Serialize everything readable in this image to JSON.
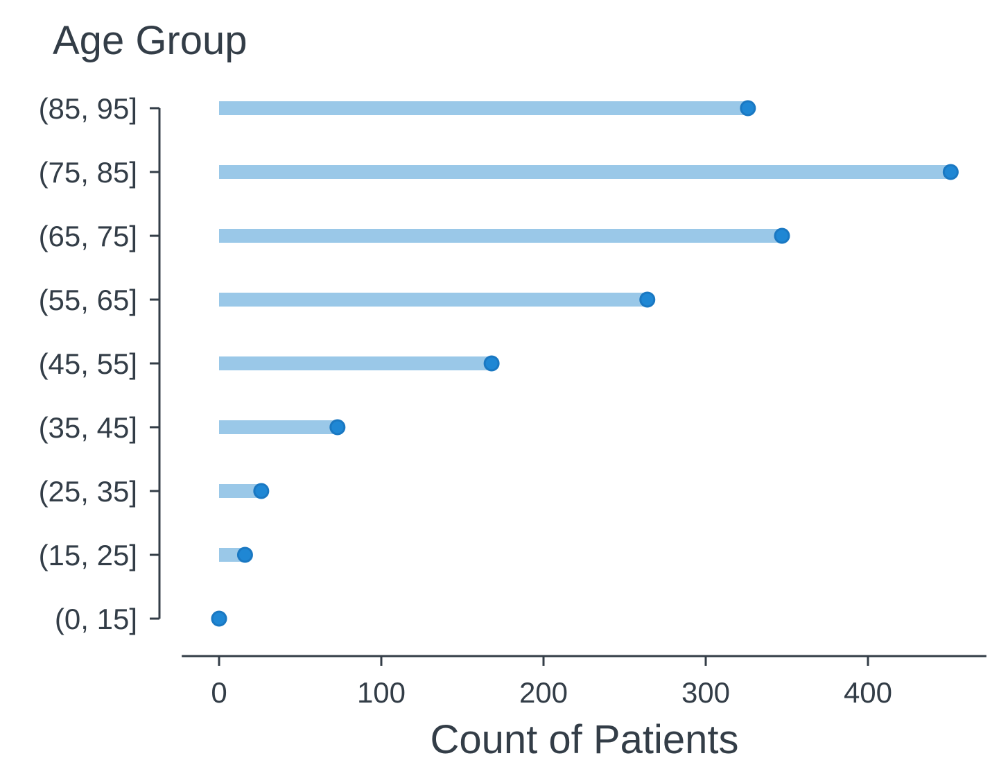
{
  "chart_data": {
    "type": "lollipop-bar",
    "orientation": "horizontal",
    "title": "Age Group",
    "xlabel": "Count of Patients",
    "ylabel": "",
    "categories": [
      "(0, 15]",
      "(15, 25]",
      "(25, 35]",
      "(35, 45]",
      "(45, 55]",
      "(55, 65]",
      "(65, 75]",
      "(75, 85]",
      "(85, 95]"
    ],
    "values": [
      0,
      16,
      26,
      73,
      168,
      264,
      347,
      451,
      326
    ],
    "xlim": [
      -23,
      473
    ],
    "xticks": [
      0,
      100,
      200,
      300,
      400
    ],
    "grid": false,
    "legend": "none",
    "colors": {
      "bar": "#9ac8e8",
      "dot_fill": "#1f87d4",
      "dot_edge": "#1a78c2",
      "axis": "#333d47",
      "text": "#333d47"
    }
  }
}
